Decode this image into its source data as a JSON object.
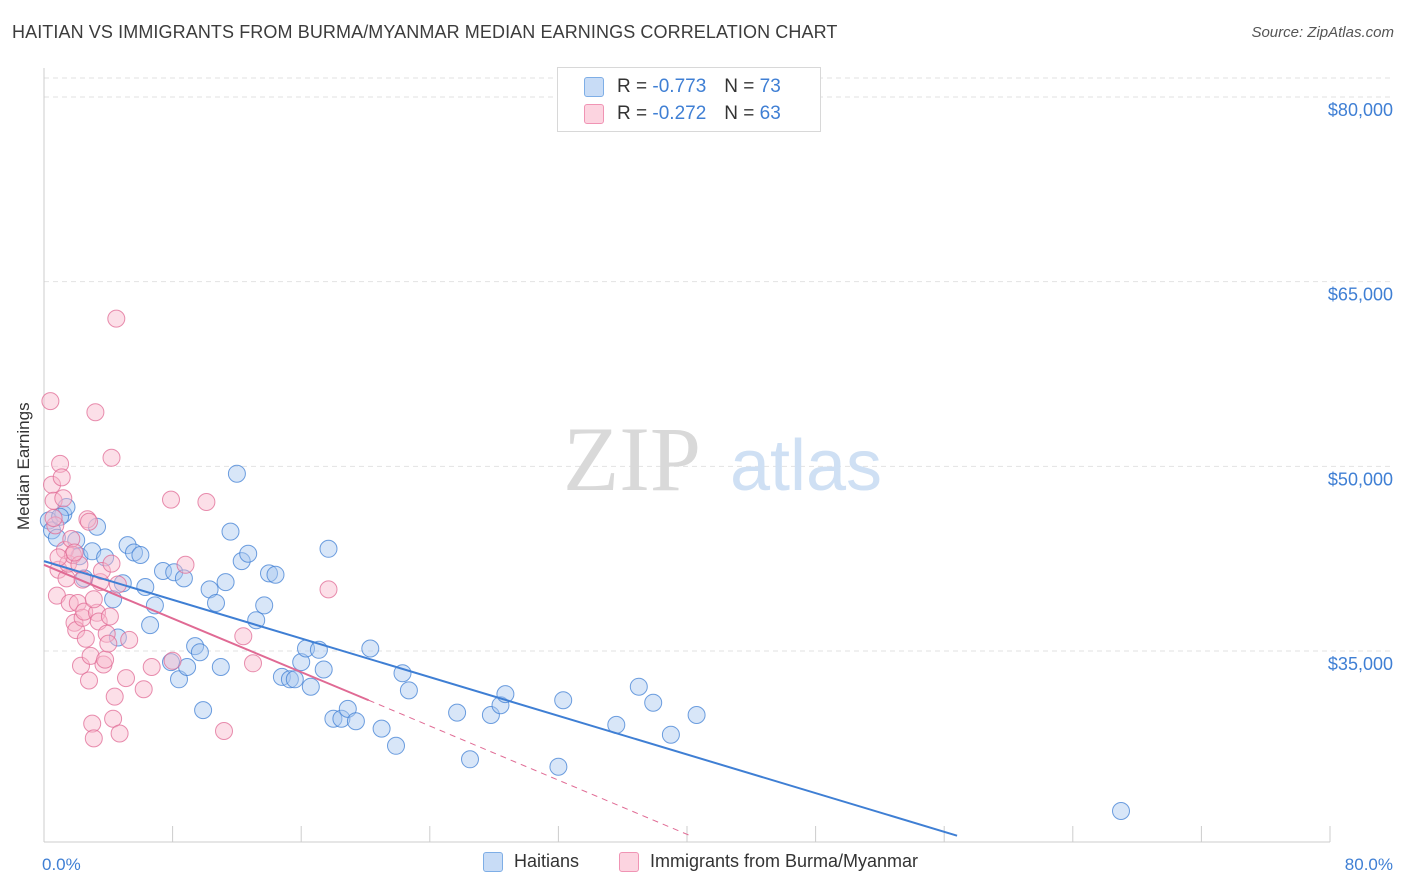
{
  "title": "HAITIAN VS IMMIGRANTS FROM BURMA/MYANMAR MEDIAN EARNINGS CORRELATION CHART",
  "source": "Source: ZipAtlas.com",
  "watermark": {
    "zip": "ZIP",
    "atlas": "atlas"
  },
  "legend": {
    "r_label": "R =",
    "n_label": "N =",
    "rows": [
      {
        "r": "-0.773",
        "n": "73",
        "color": "#a8c8f0"
      },
      {
        "r": "-0.272",
        "n": "63",
        "color": "#f8b8cc"
      }
    ]
  },
  "chart_data": {
    "type": "scatter",
    "title": "HAITIAN VS IMMIGRANTS FROM BURMA/MYANMAR MEDIAN EARNINGS CORRELATION CHART",
    "xlabel": "",
    "ylabel": "Median Earnings",
    "xlim": [
      0,
      80
    ],
    "ylim": [
      20000,
      82000
    ],
    "x_tick_labels": [
      "0.0%",
      "80.0%"
    ],
    "y_ticks": [
      35000,
      50000,
      65000,
      80000
    ],
    "y_tick_labels": [
      "$35,000",
      "$50,000",
      "$65,000",
      "$80,000"
    ],
    "grid": true,
    "series": [
      {
        "name": "Haitians",
        "color": "#3f7fd4",
        "fill": "#a8c8f0",
        "trend": {
          "x": [
            0,
            56.8
          ],
          "y": [
            42300,
            20000
          ]
        },
        "points": [
          [
            0.3,
            45600
          ],
          [
            0.5,
            44800
          ],
          [
            0.8,
            44200
          ],
          [
            1.2,
            46100
          ],
          [
            1.4,
            46700
          ],
          [
            2.0,
            44000
          ],
          [
            2.2,
            42700
          ],
          [
            2.5,
            40900
          ],
          [
            3.0,
            43100
          ],
          [
            3.3,
            45100
          ],
          [
            3.8,
            42600
          ],
          [
            4.3,
            39200
          ],
          [
            4.6,
            36100
          ],
          [
            4.9,
            40500
          ],
          [
            5.2,
            43600
          ],
          [
            5.6,
            43000
          ],
          [
            6.0,
            42800
          ],
          [
            6.3,
            40200
          ],
          [
            6.6,
            37100
          ],
          [
            6.9,
            38700
          ],
          [
            7.4,
            41500
          ],
          [
            7.9,
            34100
          ],
          [
            8.1,
            41400
          ],
          [
            8.4,
            32700
          ],
          [
            8.7,
            40900
          ],
          [
            8.9,
            33700
          ],
          [
            9.4,
            35400
          ],
          [
            9.7,
            34900
          ],
          [
            9.9,
            30200
          ],
          [
            10.3,
            40000
          ],
          [
            10.7,
            38900
          ],
          [
            11.0,
            33700
          ],
          [
            11.3,
            40600
          ],
          [
            11.6,
            44700
          ],
          [
            12.0,
            49400
          ],
          [
            12.3,
            42300
          ],
          [
            12.7,
            42900
          ],
          [
            13.2,
            37500
          ],
          [
            13.7,
            38700
          ],
          [
            14.0,
            41300
          ],
          [
            14.4,
            41200
          ],
          [
            14.8,
            32900
          ],
          [
            15.3,
            32700
          ],
          [
            15.6,
            32700
          ],
          [
            16.0,
            34100
          ],
          [
            16.3,
            35200
          ],
          [
            16.6,
            32100
          ],
          [
            17.1,
            35100
          ],
          [
            17.4,
            33500
          ],
          [
            17.7,
            43300
          ],
          [
            18.0,
            29500
          ],
          [
            18.5,
            29500
          ],
          [
            18.9,
            30300
          ],
          [
            19.4,
            29300
          ],
          [
            20.3,
            35200
          ],
          [
            21.0,
            28700
          ],
          [
            21.9,
            27300
          ],
          [
            22.3,
            33200
          ],
          [
            22.7,
            31800
          ],
          [
            25.7,
            30000
          ],
          [
            26.5,
            26200
          ],
          [
            27.8,
            29800
          ],
          [
            28.4,
            30600
          ],
          [
            28.7,
            31500
          ],
          [
            32.0,
            25600
          ],
          [
            32.3,
            31000
          ],
          [
            35.6,
            29000
          ],
          [
            37.0,
            32100
          ],
          [
            37.9,
            30800
          ],
          [
            39.0,
            28200
          ],
          [
            40.6,
            29800
          ],
          [
            67.0,
            22000
          ],
          [
            1.0,
            45900
          ]
        ]
      },
      {
        "name": "Immigrants from Burma/Myanmar",
        "color": "#e06a94",
        "fill": "#f8b8cc",
        "trend": {
          "x": [
            0,
            20.2
          ],
          "y": [
            42000,
            31000
          ]
        },
        "trend_dashed": {
          "x": [
            20.2,
            40.2
          ],
          "y": [
            31000,
            20000
          ]
        },
        "points": [
          [
            0.4,
            55300
          ],
          [
            0.5,
            48500
          ],
          [
            0.6,
            47200
          ],
          [
            0.7,
            45200
          ],
          [
            0.8,
            39500
          ],
          [
            0.9,
            41600
          ],
          [
            1.0,
            50200
          ],
          [
            1.1,
            49100
          ],
          [
            1.2,
            47400
          ],
          [
            1.3,
            43200
          ],
          [
            1.4,
            40900
          ],
          [
            1.5,
            42100
          ],
          [
            1.6,
            38900
          ],
          [
            1.7,
            44100
          ],
          [
            1.8,
            42800
          ],
          [
            1.9,
            37300
          ],
          [
            2.0,
            36700
          ],
          [
            2.1,
            38900
          ],
          [
            2.2,
            42000
          ],
          [
            2.3,
            33800
          ],
          [
            2.4,
            37700
          ],
          [
            2.5,
            38200
          ],
          [
            2.6,
            36000
          ],
          [
            2.7,
            45700
          ],
          [
            2.8,
            32600
          ],
          [
            2.9,
            34600
          ],
          [
            3.0,
            29100
          ],
          [
            3.1,
            27900
          ],
          [
            3.2,
            54400
          ],
          [
            3.3,
            38100
          ],
          [
            3.4,
            37400
          ],
          [
            3.5,
            40600
          ],
          [
            3.6,
            41500
          ],
          [
            3.7,
            33900
          ],
          [
            3.8,
            34300
          ],
          [
            3.9,
            36400
          ],
          [
            4.0,
            35600
          ],
          [
            4.1,
            37800
          ],
          [
            4.2,
            50700
          ],
          [
            4.3,
            29500
          ],
          [
            4.4,
            31300
          ],
          [
            4.5,
            62000
          ],
          [
            4.6,
            40400
          ],
          [
            4.7,
            28300
          ],
          [
            5.1,
            32800
          ],
          [
            5.3,
            35900
          ],
          [
            6.2,
            31900
          ],
          [
            6.7,
            33700
          ],
          [
            7.9,
            47300
          ],
          [
            8.0,
            34200
          ],
          [
            8.8,
            42000
          ],
          [
            10.1,
            47100
          ],
          [
            11.2,
            28500
          ],
          [
            12.4,
            36200
          ],
          [
            13.0,
            34000
          ],
          [
            17.7,
            40000
          ],
          [
            0.6,
            45800
          ],
          [
            1.9,
            43000
          ],
          [
            2.4,
            40800
          ],
          [
            3.1,
            39200
          ],
          [
            4.2,
            42100
          ],
          [
            0.9,
            42600
          ],
          [
            2.8,
            45500
          ]
        ]
      }
    ]
  },
  "bottom_legend": [
    {
      "label": "Haitians",
      "color": "#a8c8f0"
    },
    {
      "label": "Immigrants from Burma/Myanmar",
      "color": "#f8b8cc"
    }
  ]
}
